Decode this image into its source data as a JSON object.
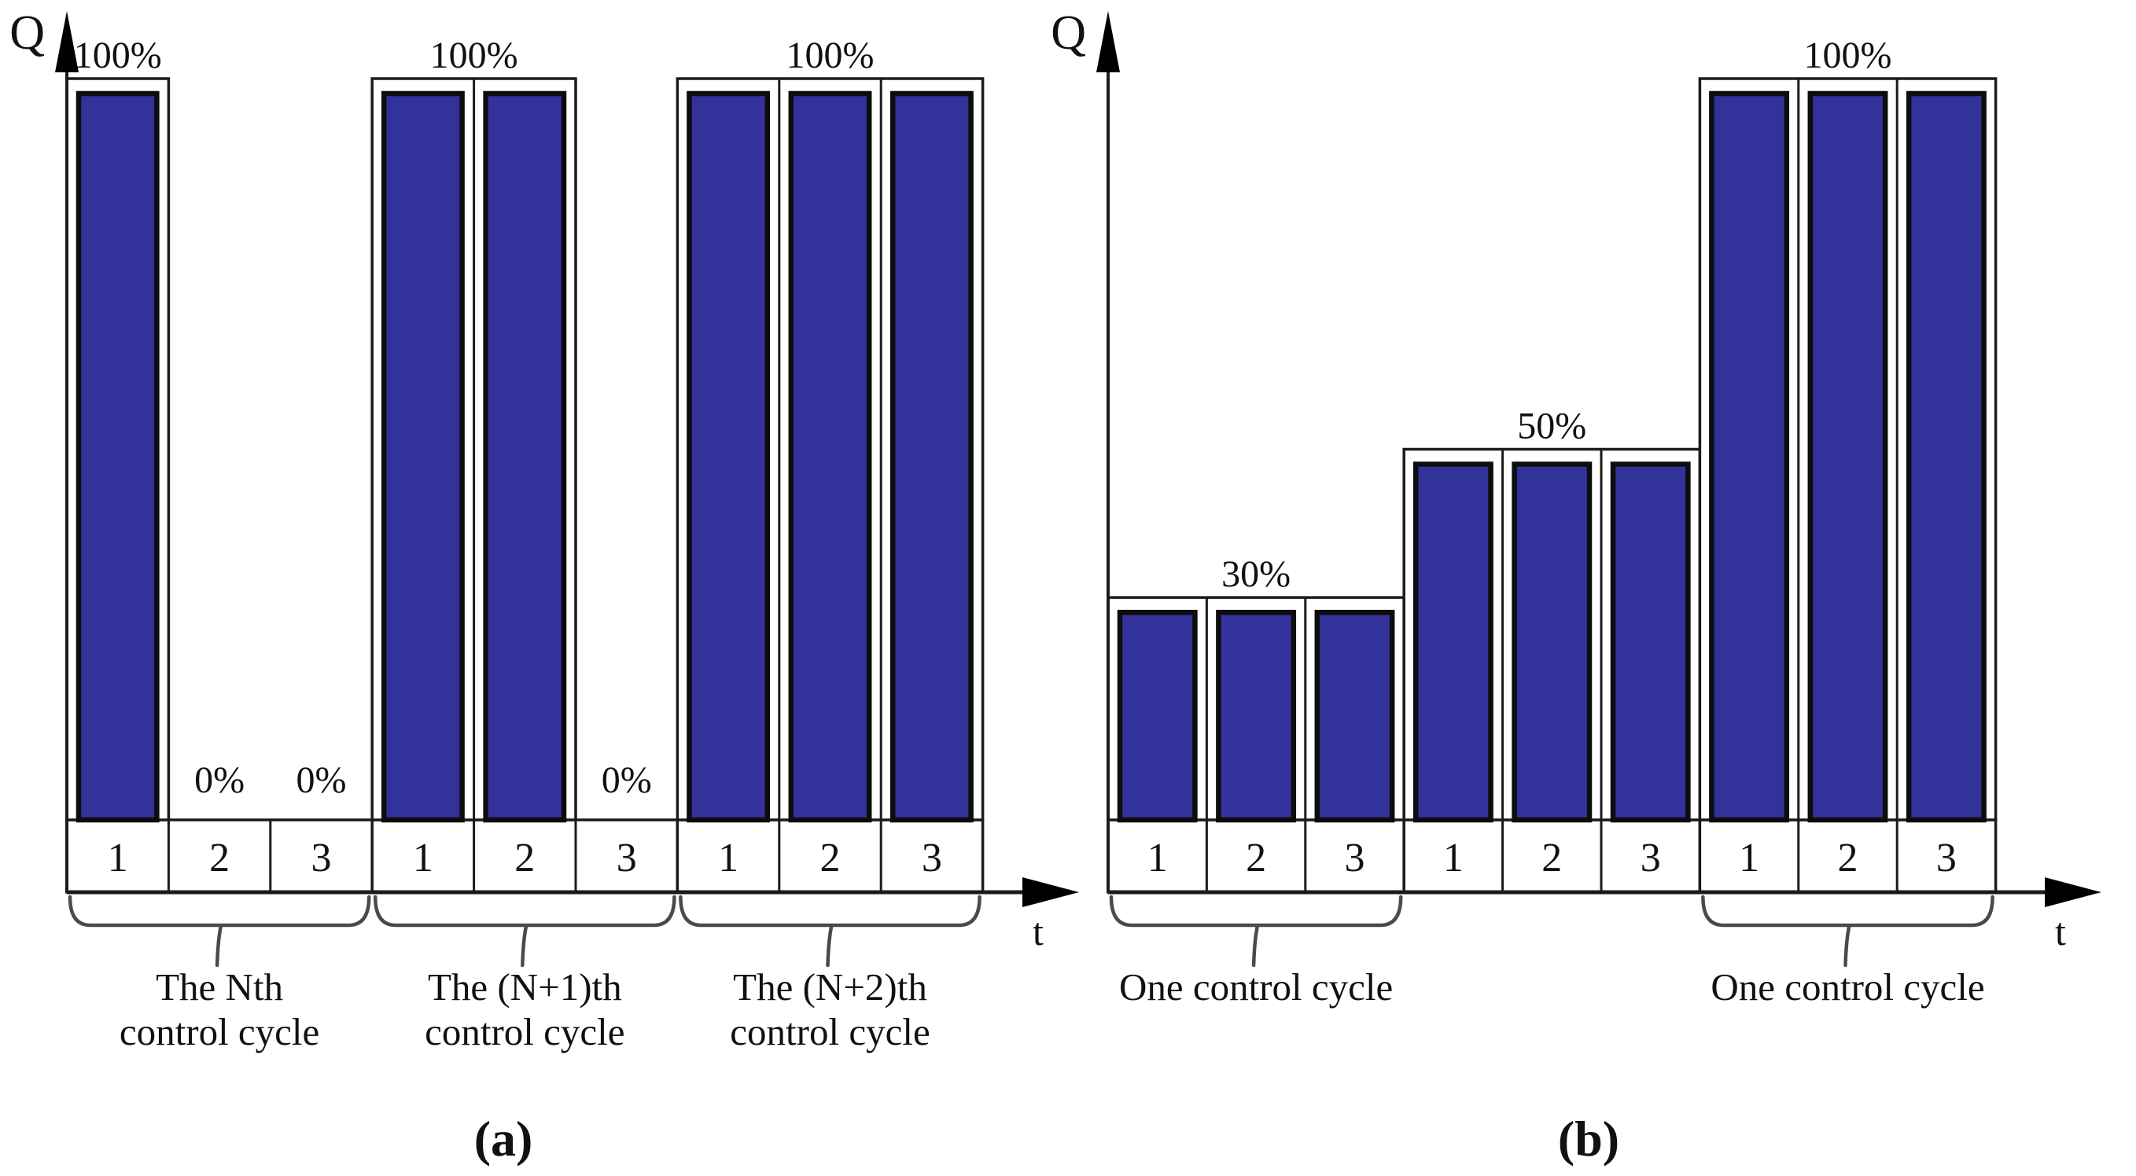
{
  "figure": {
    "background": "#ffffff",
    "colors": {
      "bar_fill": "#32329a",
      "bar_stroke": "#0d0d0d",
      "line": "#1b1b1b",
      "brace": "#4a4a4a",
      "text": "#111111"
    },
    "captions": {
      "a": "(a)",
      "b": "(b)"
    }
  },
  "chart_data": [
    {
      "id": "a",
      "type": "bar",
      "ylabel": "Q",
      "xlabel": "t",
      "ylim": [
        0,
        100
      ],
      "unit": "percent duty cycle",
      "slot_labels": [
        "1",
        "2",
        "3"
      ],
      "groups": [
        {
          "cycle_label": [
            "The Nth",
            "control cycle"
          ],
          "values": [
            100,
            0,
            0
          ],
          "value_label": {
            "text": "100%",
            "span": [
              0,
              0
            ]
          },
          "zero_labels": [
            {
              "text": "0%",
              "cell": 1
            },
            {
              "text": "0%",
              "cell": 2
            }
          ],
          "brace": true
        },
        {
          "cycle_label": [
            "The (N+1)th",
            "control cycle"
          ],
          "values": [
            100,
            100,
            0
          ],
          "value_label": {
            "text": "100%",
            "span": [
              0,
              1
            ]
          },
          "zero_labels": [
            {
              "text": "0%",
              "cell": 2
            }
          ],
          "brace": true
        },
        {
          "cycle_label": [
            "The (N+2)th",
            "control cycle"
          ],
          "values": [
            100,
            100,
            100
          ],
          "value_label": {
            "text": "100%",
            "span": [
              0,
              2
            ]
          },
          "zero_labels": [],
          "brace": true
        }
      ]
    },
    {
      "id": "b",
      "type": "bar",
      "ylabel": "Q",
      "xlabel": "t",
      "ylim": [
        0,
        100
      ],
      "unit": "percent duty cycle",
      "slot_labels": [
        "1",
        "2",
        "3"
      ],
      "groups": [
        {
          "cycle_label": [
            "One control cycle"
          ],
          "values": [
            30,
            30,
            30
          ],
          "value_label": {
            "text": "30%",
            "span": [
              0,
              2
            ]
          },
          "zero_labels": [],
          "brace": true
        },
        {
          "cycle_label": [],
          "values": [
            50,
            50,
            50
          ],
          "value_label": {
            "text": "50%",
            "span": [
              0,
              2
            ]
          },
          "zero_labels": [],
          "brace": false
        },
        {
          "cycle_label": [
            "One control cycle"
          ],
          "values": [
            100,
            100,
            100
          ],
          "value_label": {
            "text": "100%",
            "span": [
              0,
              2
            ]
          },
          "zero_labels": [],
          "brace": true
        }
      ]
    }
  ]
}
